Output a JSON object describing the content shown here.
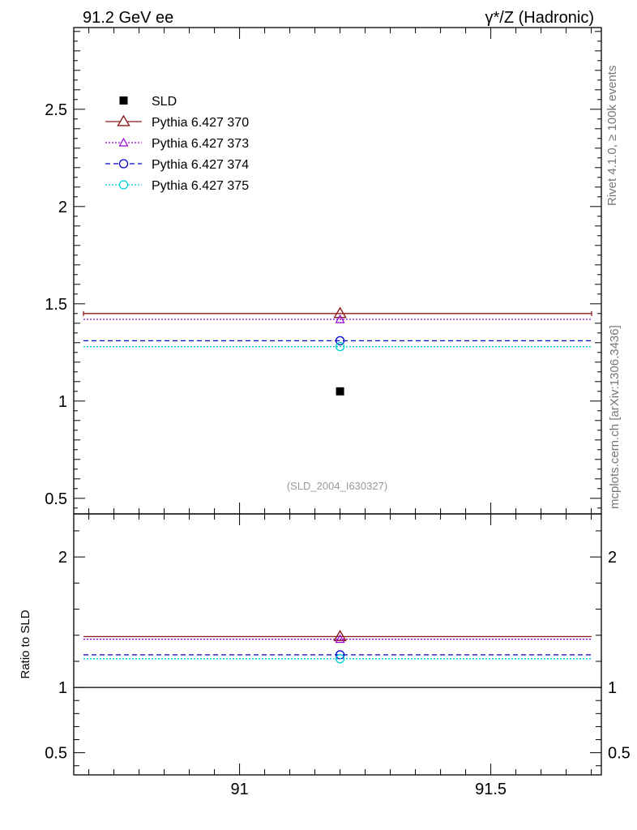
{
  "header": {
    "left_title": "91.2 GeV ee",
    "right_title": "γ*/Z (Hadronic)"
  },
  "side_labels": {
    "rivet": "Rivet 4.1.0, ≥ 100k events",
    "mcplots": "mcplots.cern.ch [arXiv:1306.3436]"
  },
  "watermark": "(SLD_2004_I630327)",
  "chart_data": [
    {
      "type": "scatter",
      "panel": "main",
      "xlim": [
        90.67,
        91.72
      ],
      "ylim": [
        0.42,
        2.92
      ],
      "yticks": [
        0.5,
        1,
        1.5,
        2,
        2.5
      ],
      "ytick_labels": [
        "0.5",
        "1",
        "1.5",
        "2",
        "2.5"
      ],
      "legend_position": "top-left",
      "series": [
        {
          "name": "SLD",
          "kind": "data",
          "x": 91.2,
          "y": 1.05,
          "color": "#000000",
          "marker": "square"
        },
        {
          "name": "Pythia 6.427 370",
          "kind": "mc",
          "x": 91.2,
          "y": 1.45,
          "color": "#8b1a1a",
          "marker": "triangle",
          "dash": "solid"
        },
        {
          "name": "Pythia 6.427 373",
          "kind": "mc",
          "x": 91.2,
          "y": 1.42,
          "color": "#9400d3",
          "marker": "triangle-small",
          "dash": "dotted"
        },
        {
          "name": "Pythia 6.427 374",
          "kind": "mc",
          "x": 91.2,
          "y": 1.31,
          "color": "#0000cd",
          "marker": "circle",
          "dash": "dashed"
        },
        {
          "name": "Pythia 6.427 375",
          "kind": "mc",
          "x": 91.2,
          "y": 1.28,
          "color": "#00ced1",
          "marker": "circle",
          "dash": "dotted"
        }
      ]
    },
    {
      "type": "scatter",
      "panel": "ratio",
      "ylabel": "Ratio to SLD",
      "xlim": [
        90.67,
        91.72
      ],
      "ylim": [
        0.33,
        2.33
      ],
      "xticks": [
        91,
        91.5
      ],
      "xtick_labels": [
        "91",
        "91.5"
      ],
      "yticks": [
        0.5,
        1,
        2
      ],
      "ytick_labels": [
        "0.5",
        "1",
        "2"
      ],
      "reference_line": 1,
      "series": [
        {
          "name": "Pythia 6.427 370",
          "x": 91.2,
          "y": 1.39,
          "color": "#8b1a1a",
          "marker": "triangle",
          "dash": "solid"
        },
        {
          "name": "Pythia 6.427 373",
          "x": 91.2,
          "y": 1.37,
          "color": "#9400d3",
          "marker": "triangle-small",
          "dash": "dotted"
        },
        {
          "name": "Pythia 6.427 374",
          "x": 91.2,
          "y": 1.25,
          "color": "#0000cd",
          "marker": "circle",
          "dash": "dashed"
        },
        {
          "name": "Pythia 6.427 375",
          "x": 91.2,
          "y": 1.22,
          "color": "#00ced1",
          "marker": "circle",
          "dash": "dotted"
        }
      ]
    }
  ]
}
